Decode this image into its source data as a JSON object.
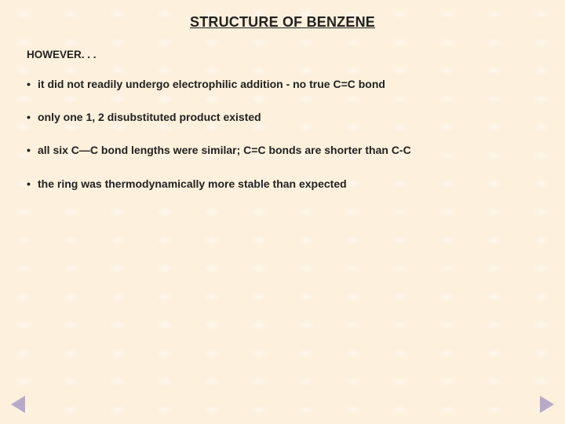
{
  "slide": {
    "background_color": "#fdf0dc",
    "pattern_highlight_color": "rgba(255,255,255,0.45)",
    "text_color": "#222222",
    "nav_arrow_color": "#b9a9c9",
    "title": "STRUCTURE OF BENZENE",
    "title_fontsize": 18,
    "lead": "HOWEVER. . .",
    "lead_fontsize": 13.5,
    "bullet_fontsize": 14,
    "bullets": [
      "it did not readily undergo electrophilic addition  - no true C=C bond",
      "only one 1, 2 disubstituted product existed",
      "all six C—C bond lengths were similar; C=C bonds are shorter than C-C",
      "the ring was thermodynamically more stable than expected"
    ]
  }
}
